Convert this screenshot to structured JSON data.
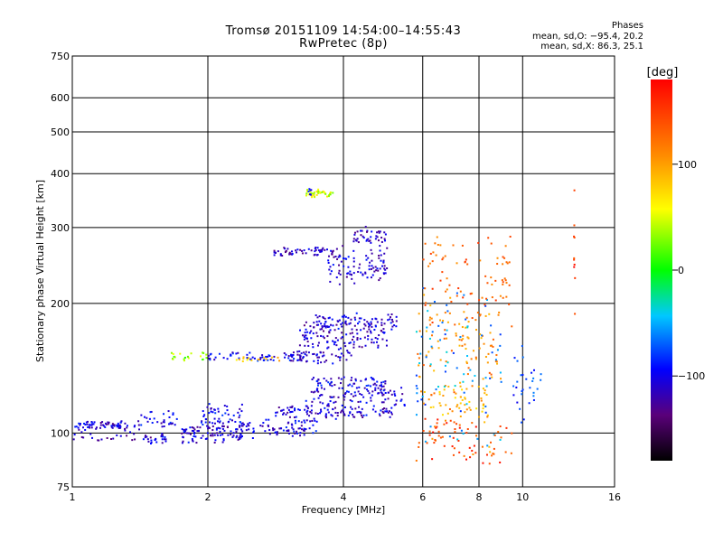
{
  "chart_data": {
    "type": "scatter",
    "title": "Tromsø 20151109 14:54:00–14:55:43",
    "subtitle": "RwPretec (8p)",
    "xlabel": "Frequency [MHz]",
    "ylabel": "Stationary phase Virtual Height [km]",
    "x_scale": "log",
    "y_scale": "log",
    "xlim": [
      1,
      16
    ],
    "ylim": [
      75,
      750
    ],
    "x_ticks": [
      1,
      2,
      4,
      6,
      8,
      10,
      16
    ],
    "y_ticks": [
      75,
      100,
      200,
      300,
      400,
      500,
      600,
      750
    ],
    "grid": true,
    "stats": {
      "heading": "Phases",
      "o_line": "mean, sd,O: −95.4, 20.2",
      "x_line": "mean, sd,X: 86.3, 25.1"
    },
    "colorbar": {
      "label": "[deg]",
      "range": [
        -180,
        180
      ],
      "ticks": [
        "100",
        "0",
        "−100"
      ],
      "tick_values": [
        100,
        0,
        -100
      ]
    },
    "traces": [
      {
        "f_min": 1.0,
        "f_max": 1.42,
        "h": 104,
        "spread": 2,
        "phase": -110,
        "n": 70
      },
      {
        "f_min": 1.0,
        "f_max": 1.6,
        "h": 98,
        "spread": 2,
        "phase": -115,
        "n": 30
      },
      {
        "f_min": 1.45,
        "f_max": 1.62,
        "h": 97,
        "spread": 2,
        "phase": -110,
        "n": 15
      },
      {
        "f_min": 1.4,
        "f_max": 1.75,
        "h": 108,
        "spread": 4,
        "phase": -105,
        "n": 30
      },
      {
        "f_min": 1.75,
        "f_max": 2.4,
        "h": 100,
        "spread": 4,
        "phase": -110,
        "n": 100
      },
      {
        "f_min": 1.9,
        "f_max": 2.4,
        "h": 110,
        "spread": 5,
        "phase": -100,
        "n": 50
      },
      {
        "f_min": 2.35,
        "f_max": 3.5,
        "h": 103,
        "spread": 4,
        "phase": -105,
        "n": 80
      },
      {
        "f_min": 2.8,
        "f_max": 5.2,
        "h": 112,
        "spread": 3,
        "phase": -110,
        "n": 110
      },
      {
        "f_min": 3.3,
        "f_max": 5.5,
        "h": 122,
        "spread": 5,
        "phase": -110,
        "n": 90
      },
      {
        "f_min": 3.4,
        "f_max": 5.0,
        "h": 130,
        "spread": 4,
        "phase": -105,
        "n": 60
      },
      {
        "f_min": 1.65,
        "f_max": 2.0,
        "h": 150,
        "spread": 3,
        "phase": 30,
        "n": 20
      },
      {
        "f_min": 2.0,
        "f_max": 3.3,
        "h": 150,
        "spread": 3,
        "phase": -100,
        "n": 60
      },
      {
        "f_min": 2.3,
        "f_max": 2.9,
        "h": 148,
        "spread": 2,
        "phase": 80,
        "n": 15
      },
      {
        "f_min": 3.0,
        "f_max": 4.2,
        "h": 150,
        "spread": 4,
        "phase": -110,
        "n": 50
      },
      {
        "f_min": 3.2,
        "f_max": 5.0,
        "h": 168,
        "spread": 10,
        "phase": -115,
        "n": 120
      },
      {
        "f_min": 3.4,
        "f_max": 5.3,
        "h": 182,
        "spread": 6,
        "phase": -110,
        "n": 80
      },
      {
        "f_min": 2.8,
        "f_max": 4.0,
        "h": 263,
        "spread": 5,
        "phase": -115,
        "n": 60
      },
      {
        "f_min": 3.7,
        "f_max": 5.0,
        "h": 245,
        "spread": 20,
        "phase": -110,
        "n": 90
      },
      {
        "f_min": 4.2,
        "f_max": 5.0,
        "h": 285,
        "spread": 12,
        "phase": -115,
        "n": 40
      },
      {
        "f_min": 3.3,
        "f_max": 3.8,
        "h": 360,
        "spread": 6,
        "phase": 45,
        "n": 40
      },
      {
        "f_min": 3.3,
        "f_max": 3.4,
        "h": 365,
        "spread": 8,
        "phase": -105,
        "n": 6
      },
      {
        "f_min": 5.8,
        "f_max": 9.0,
        "h": 150,
        "spread": 50,
        "phase": 110,
        "n": 130
      },
      {
        "f_min": 5.8,
        "f_max": 9.0,
        "h": 150,
        "spread": 50,
        "phase": -60,
        "n": 80
      },
      {
        "f_min": 6.0,
        "f_max": 9.5,
        "h": 230,
        "spread": 40,
        "phase": 130,
        "n": 80
      },
      {
        "f_min": 6.0,
        "f_max": 9.5,
        "h": 95,
        "spread": 10,
        "phase": 150,
        "n": 60
      },
      {
        "f_min": 6.0,
        "f_max": 8.5,
        "h": 118,
        "spread": 8,
        "phase": 90,
        "n": 40
      },
      {
        "f_min": 9.5,
        "f_max": 11.0,
        "h": 130,
        "spread": 20,
        "phase": -80,
        "n": 30
      },
      {
        "f_min": 13.0,
        "f_max": 13.1,
        "h": 300,
        "spread": 80,
        "phase": 160,
        "n": 10
      }
    ]
  }
}
